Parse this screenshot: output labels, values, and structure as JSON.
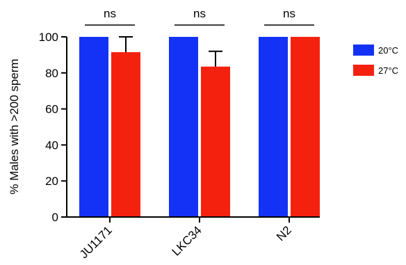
{
  "chart_data": {
    "type": "bar",
    "title": "",
    "xlabel": "",
    "ylabel": "% Males with >200 sperm",
    "ylim": [
      0,
      100
    ],
    "yticks": [
      0,
      20,
      40,
      60,
      80,
      100
    ],
    "categories": [
      "JU1171",
      "LKC34",
      "N2"
    ],
    "series": [
      {
        "name": "20°C",
        "color": "#1432f5",
        "values": [
          100,
          100,
          100
        ],
        "errors": [
          0,
          0,
          0
        ]
      },
      {
        "name": "27°C",
        "color": "#f5210f",
        "values": [
          91.5,
          83.5,
          100
        ],
        "errors": [
          8.5,
          8.5,
          0
        ]
      }
    ],
    "significance": [
      "ns",
      "ns",
      "ns"
    ],
    "legend_position": "right",
    "grid": false
  }
}
